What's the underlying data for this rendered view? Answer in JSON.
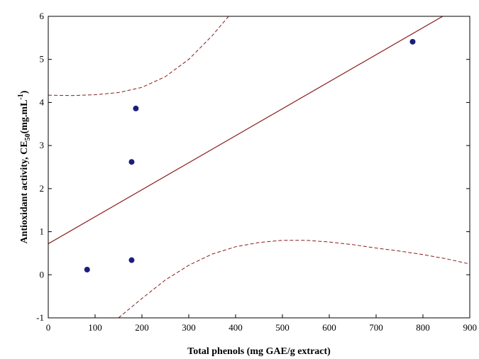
{
  "chart_data": {
    "type": "scatter",
    "xlabel": "Total phenols (mg GAE/g extract)",
    "ylabel": {
      "main": "Antioxidant activity, CE",
      "subscript": "50",
      "unit_start": "(mg.mL",
      "superscript": "-1",
      "unit_end": ")"
    },
    "xlim": [
      0,
      900
    ],
    "ylim": [
      -1,
      6
    ],
    "x_ticks": [
      0,
      100,
      200,
      300,
      400,
      500,
      600,
      700,
      800,
      900
    ],
    "x_tick_labels": [
      "0",
      "100",
      "200",
      "300",
      "400",
      "500",
      "600",
      "700",
      "800",
      "900"
    ],
    "y_ticks": [
      -1,
      0,
      1,
      2,
      3,
      4,
      5,
      6
    ],
    "y_tick_labels": [
      "-1",
      "0",
      "1",
      "2",
      "3",
      "4",
      "5",
      "6"
    ],
    "grid": false,
    "points": [
      {
        "x": 83,
        "y": 0.12
      },
      {
        "x": 178,
        "y": 0.34
      },
      {
        "x": 178,
        "y": 2.62
      },
      {
        "x": 187,
        "y": 3.86
      },
      {
        "x": 778,
        "y": 5.41
      }
    ],
    "regression": {
      "intercept": 0.72,
      "slope": 0.00627
    },
    "confidence_band": {
      "upper": [
        [
          0,
          4.17
        ],
        [
          50,
          4.16
        ],
        [
          100,
          4.18
        ],
        [
          150,
          4.23
        ],
        [
          200,
          4.35
        ],
        [
          250,
          4.6
        ],
        [
          300,
          5.0
        ],
        [
          350,
          5.55
        ],
        [
          385,
          6.0
        ]
      ],
      "lower": [
        [
          150,
          -1.0
        ],
        [
          200,
          -0.55
        ],
        [
          250,
          -0.12
        ],
        [
          300,
          0.22
        ],
        [
          350,
          0.48
        ],
        [
          400,
          0.65
        ],
        [
          450,
          0.75
        ],
        [
          500,
          0.8
        ],
        [
          550,
          0.8
        ],
        [
          600,
          0.76
        ],
        [
          650,
          0.7
        ],
        [
          700,
          0.62
        ],
        [
          750,
          0.55
        ],
        [
          800,
          0.47
        ],
        [
          850,
          0.37
        ],
        [
          900,
          0.25
        ]
      ]
    },
    "colors": {
      "points": "#1a1f7a",
      "regression": "#8b1c1c",
      "band": "#8b1c1c",
      "axes": "#000000"
    }
  }
}
